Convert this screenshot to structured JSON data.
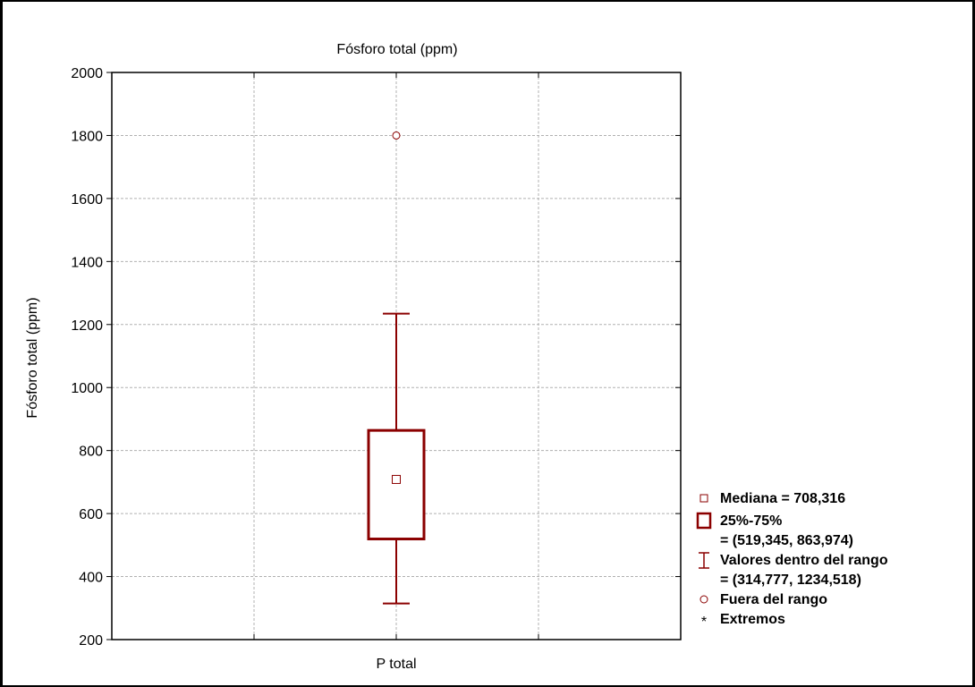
{
  "chart_data": {
    "type": "box",
    "title": "Fósforo total (ppm)",
    "ylabel": "Fósforo total (ppm)",
    "xlabel": "",
    "ylim": [
      200,
      2000
    ],
    "yticks": [
      200,
      400,
      600,
      800,
      1000,
      1200,
      1400,
      1600,
      1800,
      2000
    ],
    "categories": [
      "P total"
    ],
    "grid": true,
    "legend_position": "right",
    "series": [
      {
        "category": "P total",
        "median": 708.316,
        "q1": 519.345,
        "q3": 863.974,
        "whisker_low": 314.777,
        "whisker_high": 1234.518,
        "outliers": [
          1800
        ],
        "extremes": []
      }
    ],
    "legend": [
      {
        "symbol": "median-square",
        "lines": [
          "Mediana = 708,316"
        ]
      },
      {
        "symbol": "box",
        "lines": [
          "25%-75%",
          "= (519,345, 863,974)"
        ]
      },
      {
        "symbol": "whisker",
        "lines": [
          "Valores dentro del rango",
          "= (314,777, 1234,518)"
        ]
      },
      {
        "symbol": "outlier-circle",
        "lines": [
          "Fuera del rango"
        ]
      },
      {
        "symbol": "extreme-asterisk",
        "lines": [
          "Extremos"
        ]
      }
    ],
    "colors": {
      "box": "#8B0000",
      "grid": "#b0b0b0",
      "axis": "#000000"
    }
  }
}
